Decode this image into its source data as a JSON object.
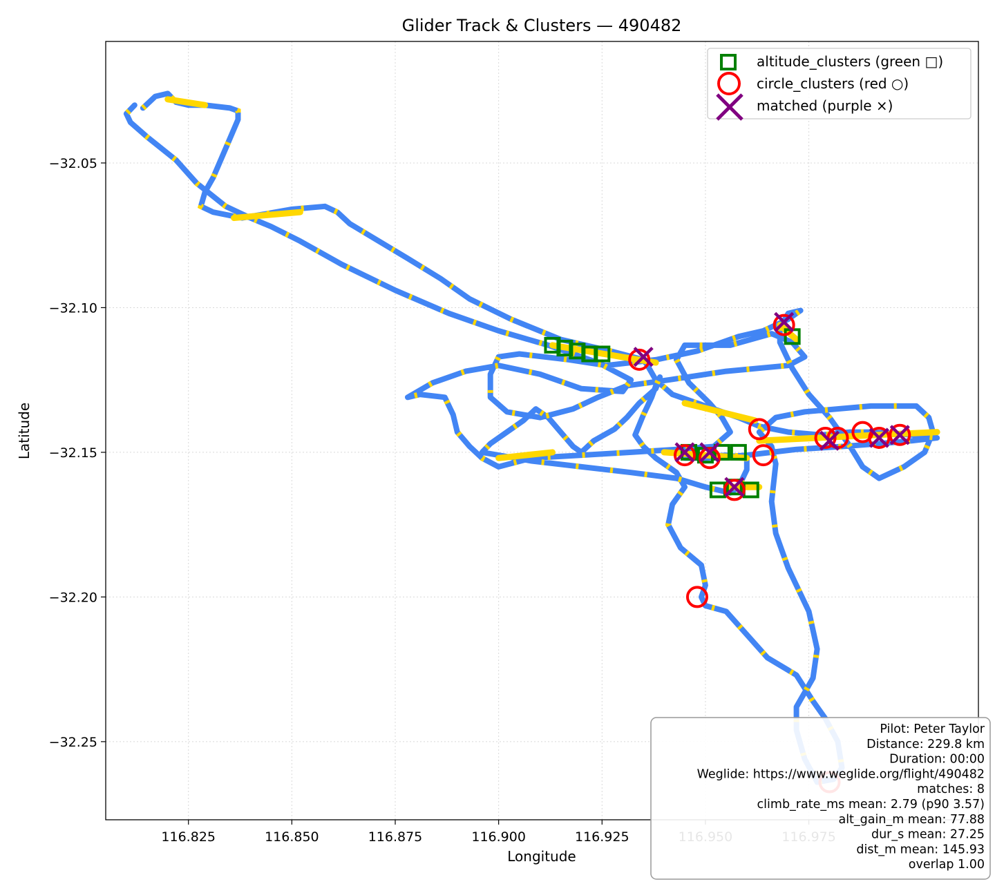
{
  "chart_data": {
    "type": "scatter",
    "title": "Glider Track & Clusters — 490482",
    "xlabel": "Longitude",
    "ylabel": "Latitude",
    "xlim": [
      116.805,
      117.016
    ],
    "ylim": [
      -32.277,
      -32.008
    ],
    "xticks": [
      116.825,
      116.85,
      116.875,
      116.9,
      116.925,
      116.95,
      116.975
    ],
    "xtick_labels": [
      "116.825",
      "116.850",
      "116.875",
      "116.900",
      "116.925",
      "116.950",
      "116.975"
    ],
    "yticks": [
      -32.05,
      -32.1,
      -32.15,
      -32.2,
      -32.25
    ],
    "ytick_labels": [
      "−32.05",
      "−32.10",
      "−32.15",
      "−32.20",
      "−32.25"
    ],
    "grid": true,
    "legend_position": "upper right",
    "colors": {
      "track": "#4285f4",
      "highlight": "#ffd700",
      "altitude": "#008000",
      "circle": "#ff0000",
      "matched": "#800080"
    },
    "legend": [
      {
        "label": "altitude_clusters (green □)",
        "marker": "square",
        "color": "#008000"
      },
      {
        "label": "circle_clusters (red ○)",
        "marker": "circle",
        "color": "#ff0000"
      },
      {
        "label": "matched (purple ×)",
        "marker": "x",
        "color": "#800080"
      }
    ],
    "track": [
      [
        116.814,
        -32.031
      ],
      [
        116.817,
        -32.027
      ],
      [
        116.82,
        -32.026
      ],
      [
        116.822,
        -32.029
      ],
      [
        116.825,
        -32.03
      ],
      [
        116.829,
        -32.03
      ],
      [
        116.835,
        -32.031
      ],
      [
        116.837,
        -32.032
      ],
      [
        116.837,
        -32.035
      ],
      [
        116.834,
        -32.045
      ],
      [
        116.831,
        -32.055
      ],
      [
        116.829,
        -32.06
      ],
      [
        116.828,
        -32.065
      ],
      [
        116.831,
        -32.067
      ],
      [
        116.838,
        -32.069
      ],
      [
        116.85,
        -32.066
      ],
      [
        116.858,
        -32.065
      ],
      [
        116.861,
        -32.067
      ],
      [
        116.864,
        -32.071
      ],
      [
        116.871,
        -32.077
      ],
      [
        116.878,
        -32.083
      ],
      [
        116.886,
        -32.09
      ],
      [
        116.893,
        -32.097
      ],
      [
        116.903,
        -32.104
      ],
      [
        116.915,
        -32.111
      ],
      [
        116.927,
        -32.115
      ],
      [
        116.935,
        -32.118
      ],
      [
        116.936,
        -32.12
      ],
      [
        116.938,
        -32.125
      ],
      [
        116.942,
        -32.13
      ],
      [
        116.95,
        -32.134
      ],
      [
        116.958,
        -32.138
      ],
      [
        116.963,
        -32.141
      ],
      [
        116.97,
        -32.143
      ],
      [
        116.978,
        -32.144
      ],
      [
        116.985,
        -32.143
      ],
      [
        116.99,
        -32.143
      ],
      [
        117.0,
        -32.144
      ],
      [
        117.006,
        -32.145
      ],
      [
        117.0,
        -32.146
      ],
      [
        116.992,
        -32.147
      ],
      [
        116.983,
        -32.148
      ],
      [
        116.972,
        -32.149
      ],
      [
        116.96,
        -32.151
      ],
      [
        116.95,
        -32.152
      ],
      [
        116.945,
        -32.152
      ],
      [
        116.955,
        -32.151
      ],
      [
        116.96,
        -32.152
      ],
      [
        116.96,
        -32.156
      ],
      [
        116.958,
        -32.162
      ],
      [
        116.956,
        -32.164
      ],
      [
        116.95,
        -32.162
      ],
      [
        116.943,
        -32.159
      ],
      [
        116.932,
        -32.157
      ],
      [
        116.92,
        -32.155
      ],
      [
        116.908,
        -32.153
      ],
      [
        116.9,
        -32.151
      ],
      [
        116.896,
        -32.15
      ],
      [
        116.898,
        -32.147
      ],
      [
        116.901,
        -32.144
      ],
      [
        116.906,
        -32.139
      ],
      [
        116.909,
        -32.135
      ],
      [
        116.912,
        -32.138
      ],
      [
        116.915,
        -32.143
      ],
      [
        116.918,
        -32.148
      ],
      [
        116.92,
        -32.15
      ],
      [
        116.923,
        -32.146
      ],
      [
        116.928,
        -32.142
      ],
      [
        116.931,
        -32.138
      ],
      [
        116.934,
        -32.133
      ],
      [
        116.938,
        -32.128
      ],
      [
        116.939,
        -32.124
      ],
      [
        116.938,
        -32.127
      ],
      [
        116.937,
        -32.131
      ],
      [
        116.935,
        -32.137
      ],
      [
        116.933,
        -32.144
      ],
      [
        116.935,
        -32.148
      ],
      [
        116.938,
        -32.152
      ],
      [
        116.943,
        -32.157
      ],
      [
        116.945,
        -32.162
      ],
      [
        116.942,
        -32.168
      ],
      [
        116.941,
        -32.175
      ],
      [
        116.944,
        -32.183
      ],
      [
        116.949,
        -32.189
      ],
      [
        116.95,
        -32.196
      ],
      [
        116.949,
        -32.2
      ],
      [
        116.95,
        -32.203
      ],
      [
        116.955,
        -32.205
      ],
      [
        116.96,
        -32.213
      ],
      [
        116.965,
        -32.221
      ],
      [
        116.972,
        -32.227
      ],
      [
        116.976,
        -32.236
      ],
      [
        116.979,
        -32.242
      ],
      [
        116.982,
        -32.25
      ],
      [
        116.983,
        -32.259
      ],
      [
        116.981,
        -32.263
      ],
      [
        116.977,
        -32.264
      ],
      [
        116.974,
        -32.256
      ],
      [
        116.972,
        -32.246
      ],
      [
        116.972,
        -32.238
      ],
      [
        116.976,
        -32.228
      ],
      [
        116.977,
        -32.218
      ],
      [
        116.975,
        -32.205
      ],
      [
        116.97,
        -32.19
      ],
      [
        116.967,
        -32.178
      ],
      [
        116.966,
        -32.167
      ],
      [
        116.967,
        -32.154
      ],
      [
        116.966,
        -32.148
      ],
      [
        116.963,
        -32.143
      ],
      [
        116.967,
        -32.138
      ],
      [
        116.974,
        -32.136
      ],
      [
        116.99,
        -32.134
      ],
      [
        117.001,
        -32.134
      ],
      [
        117.004,
        -32.138
      ],
      [
        117.005,
        -32.143
      ],
      [
        117.003,
        -32.15
      ],
      [
        116.998,
        -32.155
      ],
      [
        116.992,
        -32.159
      ],
      [
        116.988,
        -32.155
      ],
      [
        116.985,
        -32.148
      ],
      [
        116.98,
        -32.138
      ],
      [
        116.975,
        -32.13
      ],
      [
        116.971,
        -32.121
      ],
      [
        116.968,
        -32.112
      ],
      [
        116.968,
        -32.107
      ],
      [
        116.97,
        -32.102
      ],
      [
        116.973,
        -32.101
      ],
      [
        116.97,
        -32.104
      ],
      [
        116.964,
        -32.108
      ],
      [
        116.958,
        -32.11
      ],
      [
        116.948,
        -32.115
      ],
      [
        116.938,
        -32.118
      ],
      [
        116.926,
        -32.12
      ],
      [
        116.917,
        -32.118
      ],
      [
        116.905,
        -32.116
      ],
      [
        116.9,
        -32.117
      ],
      [
        116.898,
        -32.123
      ],
      [
        116.898,
        -32.131
      ],
      [
        116.902,
        -32.136
      ],
      [
        116.91,
        -32.138
      ],
      [
        116.918,
        -32.135
      ],
      [
        116.924,
        -32.131
      ],
      [
        116.931,
        -32.127
      ],
      [
        116.941,
        -32.125
      ],
      [
        116.955,
        -32.122
      ],
      [
        116.97,
        -32.12
      ],
      [
        116.974,
        -32.117
      ],
      [
        116.971,
        -32.112
      ],
      [
        116.966,
        -32.109
      ],
      [
        116.956,
        -32.113
      ],
      [
        116.945,
        -32.113
      ],
      [
        116.943,
        -32.118
      ],
      [
        116.946,
        -32.126
      ],
      [
        116.951,
        -32.133
      ],
      [
        116.954,
        -32.138
      ],
      [
        116.956,
        -32.143
      ],
      [
        116.952,
        -32.148
      ],
      [
        116.943,
        -32.149
      ],
      [
        116.932,
        -32.15
      ],
      [
        116.92,
        -32.151
      ],
      [
        116.908,
        -32.152
      ],
      [
        116.9,
        -32.155
      ],
      [
        116.896,
        -32.152
      ],
      [
        116.893,
        -32.148
      ],
      [
        116.89,
        -32.143
      ],
      [
        116.889,
        -32.137
      ],
      [
        116.887,
        -32.131
      ],
      [
        116.881,
        -32.13
      ],
      [
        116.878,
        -32.131
      ],
      [
        116.884,
        -32.126
      ],
      [
        116.892,
        -32.122
      ],
      [
        116.9,
        -32.12
      ],
      [
        116.91,
        -32.123
      ],
      [
        116.92,
        -32.128
      ],
      [
        116.93,
        -32.129
      ],
      [
        116.932,
        -32.125
      ],
      [
        116.924,
        -32.119
      ],
      [
        116.912,
        -32.113
      ],
      [
        116.9,
        -32.108
      ],
      [
        116.888,
        -32.102
      ],
      [
        116.875,
        -32.094
      ],
      [
        116.862,
        -32.085
      ],
      [
        116.852,
        -32.077
      ],
      [
        116.845,
        -32.072
      ],
      [
        116.84,
        -32.069
      ],
      [
        116.834,
        -32.065
      ],
      [
        116.827,
        -32.057
      ],
      [
        116.822,
        -32.049
      ],
      [
        116.815,
        -32.041
      ],
      [
        116.811,
        -32.036
      ],
      [
        116.81,
        -32.033
      ],
      [
        116.812,
        -32.03
      ]
    ],
    "highlight_runs": [
      [
        116.913,
        -32.113,
        116.938,
        -32.119
      ],
      [
        116.94,
        -32.15,
        116.96,
        -32.152
      ],
      [
        116.955,
        -32.162,
        116.963,
        -32.162
      ],
      [
        116.963,
        -32.146,
        117.006,
        -32.143
      ],
      [
        116.945,
        -32.133,
        116.962,
        -32.139
      ],
      [
        116.9,
        -32.152,
        116.913,
        -32.15
      ],
      [
        116.968,
        -32.106,
        116.972,
        -32.111
      ],
      [
        116.82,
        -32.028,
        116.829,
        -32.03
      ],
      [
        116.836,
        -32.069,
        116.852,
        -32.067
      ]
    ],
    "altitude_clusters": [
      [
        116.913,
        -32.113
      ],
      [
        116.916,
        -32.114
      ],
      [
        116.919,
        -32.115
      ],
      [
        116.922,
        -32.116
      ],
      [
        116.925,
        -32.116
      ],
      [
        116.946,
        -32.15
      ],
      [
        116.95,
        -32.151
      ],
      [
        116.954,
        -32.15
      ],
      [
        116.958,
        -32.15
      ],
      [
        116.953,
        -32.163
      ],
      [
        116.957,
        -32.162
      ],
      [
        116.961,
        -32.163
      ],
      [
        116.971,
        -32.11
      ]
    ],
    "circle_clusters": [
      [
        116.934,
        -32.118
      ],
      [
        116.969,
        -32.106
      ],
      [
        116.945,
        -32.151
      ],
      [
        116.951,
        -32.152
      ],
      [
        116.957,
        -32.163
      ],
      [
        116.963,
        -32.142
      ],
      [
        116.964,
        -32.151
      ],
      [
        116.979,
        -32.145
      ],
      [
        116.982,
        -32.145
      ],
      [
        116.988,
        -32.143
      ],
      [
        116.992,
        -32.145
      ],
      [
        116.997,
        -32.144
      ],
      [
        116.948,
        -32.2
      ],
      [
        116.98,
        -32.264
      ]
    ],
    "matched": [
      [
        116.935,
        -32.117
      ],
      [
        116.969,
        -32.105
      ],
      [
        116.945,
        -32.15
      ],
      [
        116.951,
        -32.15
      ],
      [
        116.957,
        -32.162
      ],
      [
        116.98,
        -32.146
      ],
      [
        116.992,
        -32.145
      ],
      [
        116.997,
        -32.144
      ]
    ],
    "info_box": [
      "Pilot: Peter Taylor",
      "Distance: 229.8 km",
      "Duration: 00:00",
      "Weglide: https://www.weglide.org/flight/490482",
      "matches: 8",
      "climb_rate_ms mean: 2.79 (p90 3.57)",
      "alt_gain_m mean: 77.88",
      "dur_s mean: 27.25",
      "dist_m mean: 145.93",
      "overlap 1.00"
    ]
  }
}
